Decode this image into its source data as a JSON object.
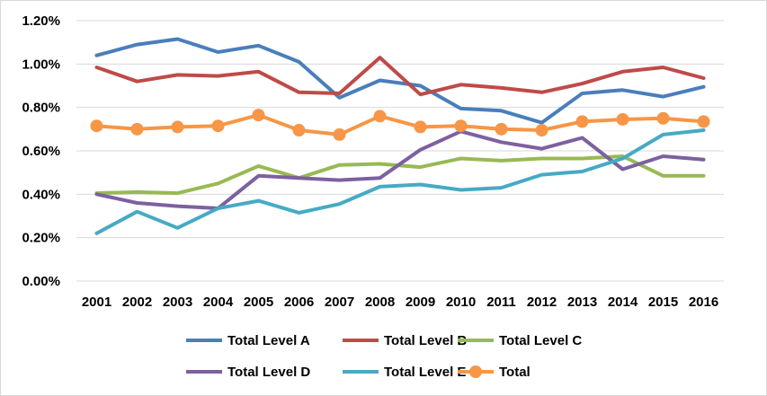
{
  "chart_data": {
    "type": "line",
    "title": "",
    "xlabel": "",
    "ylabel": "",
    "categories": [
      "2001",
      "2002",
      "2003",
      "2004",
      "2005",
      "2006",
      "2007",
      "2008",
      "2009",
      "2010",
      "2011",
      "2012",
      "2013",
      "2014",
      "2015",
      "2016"
    ],
    "ylim": [
      0,
      1.2
    ],
    "yticks": [
      0,
      0.2,
      0.4,
      0.6,
      0.8,
      1.0,
      1.2
    ],
    "ytick_labels": [
      "0.00%",
      "0.20%",
      "0.40%",
      "0.60%",
      "0.80%",
      "1.00%",
      "1.20%"
    ],
    "grid": true,
    "legend_position": "bottom",
    "series": [
      {
        "name": "Total Level A",
        "color": "#4a7ebb",
        "marker": false,
        "values": [
          1.04,
          1.09,
          1.115,
          1.055,
          1.085,
          1.01,
          0.845,
          0.925,
          0.9,
          0.795,
          0.785,
          0.73,
          0.865,
          0.88,
          0.85,
          0.895
        ]
      },
      {
        "name": "Total Level B",
        "color": "#be4b48",
        "marker": false,
        "values": [
          0.985,
          0.92,
          0.95,
          0.945,
          0.965,
          0.87,
          0.865,
          1.03,
          0.86,
          0.905,
          0.89,
          0.87,
          0.91,
          0.965,
          0.985,
          0.935
        ]
      },
      {
        "name": "Total Level C",
        "color": "#98b954",
        "marker": false,
        "values": [
          0.405,
          0.41,
          0.405,
          0.45,
          0.53,
          0.475,
          0.535,
          0.54,
          0.525,
          0.565,
          0.555,
          0.565,
          0.565,
          0.575,
          0.485,
          0.485
        ]
      },
      {
        "name": "Total Level D",
        "color": "#7d60a0",
        "marker": false,
        "values": [
          0.4,
          0.36,
          0.345,
          0.335,
          0.485,
          0.475,
          0.465,
          0.475,
          0.605,
          0.69,
          0.64,
          0.61,
          0.66,
          0.515,
          0.575,
          0.56
        ]
      },
      {
        "name": "Total Level E",
        "color": "#46aac4",
        "marker": false,
        "values": [
          0.22,
          0.32,
          0.245,
          0.335,
          0.37,
          0.315,
          0.355,
          0.435,
          0.445,
          0.42,
          0.43,
          0.49,
          0.505,
          0.565,
          0.675,
          0.695
        ]
      },
      {
        "name": "Total",
        "color": "#f79646",
        "marker": true,
        "values": [
          0.715,
          0.7,
          0.71,
          0.715,
          0.765,
          0.695,
          0.675,
          0.76,
          0.71,
          0.715,
          0.7,
          0.695,
          0.735,
          0.745,
          0.75,
          0.735
        ]
      }
    ]
  }
}
